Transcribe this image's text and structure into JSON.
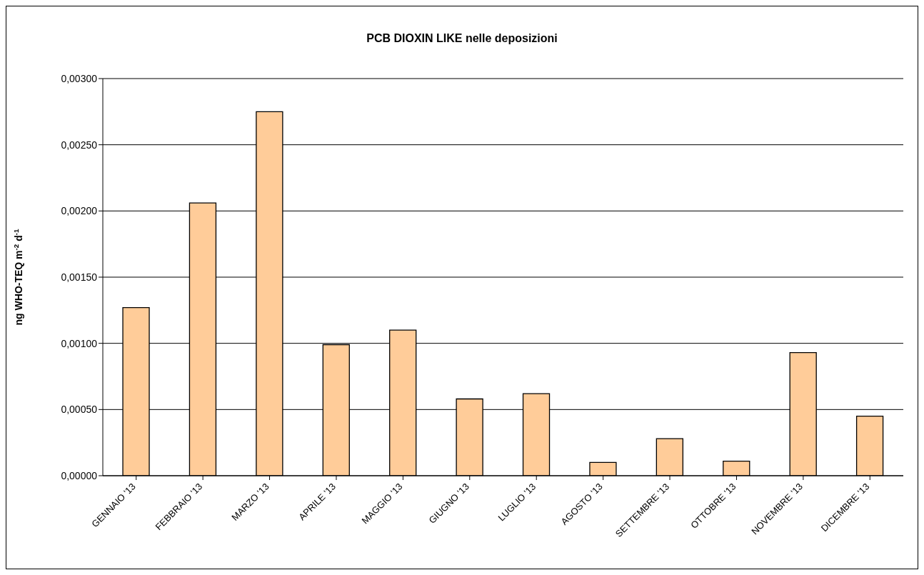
{
  "chart_data": {
    "type": "bar",
    "title": "PCB DIOXIN LIKE nelle deposizioni",
    "ylabel": "ng WHO-TEQ m$^{-2}$ d$^{-1}$",
    "categories": [
      "GENNAIO '13",
      "FEBBRAIO '13",
      "MARZO '13",
      "APRILE '13",
      "MAGGIO '13",
      "GIUGNO '13",
      "LUGLIO '13",
      "AGOSTO '13",
      "SETTEMBRE '13",
      "OTTOBRE '13",
      "NOVEMBRE '13",
      "DICEMBRE '13"
    ],
    "values": [
      0.00127,
      0.00206,
      0.00275,
      0.00099,
      0.0011,
      0.00058,
      0.00062,
      0.0001,
      0.00028,
      0.00011,
      0.00093,
      0.00045
    ],
    "color": "#ffcc99",
    "ylim": [
      0,
      0.003
    ],
    "yticks": [
      {
        "value": 0,
        "label": "0,00000"
      },
      {
        "value": 0.0005,
        "label": "0,00050"
      },
      {
        "value": 0.001,
        "label": "0,00100"
      },
      {
        "value": 0.0015,
        "label": "0,00150"
      },
      {
        "value": 0.002,
        "label": "0,00200"
      },
      {
        "value": 0.0025,
        "label": "0,00250"
      },
      {
        "value": 0.003,
        "label": "0,00300"
      }
    ],
    "grid": "y",
    "legend": false
  }
}
